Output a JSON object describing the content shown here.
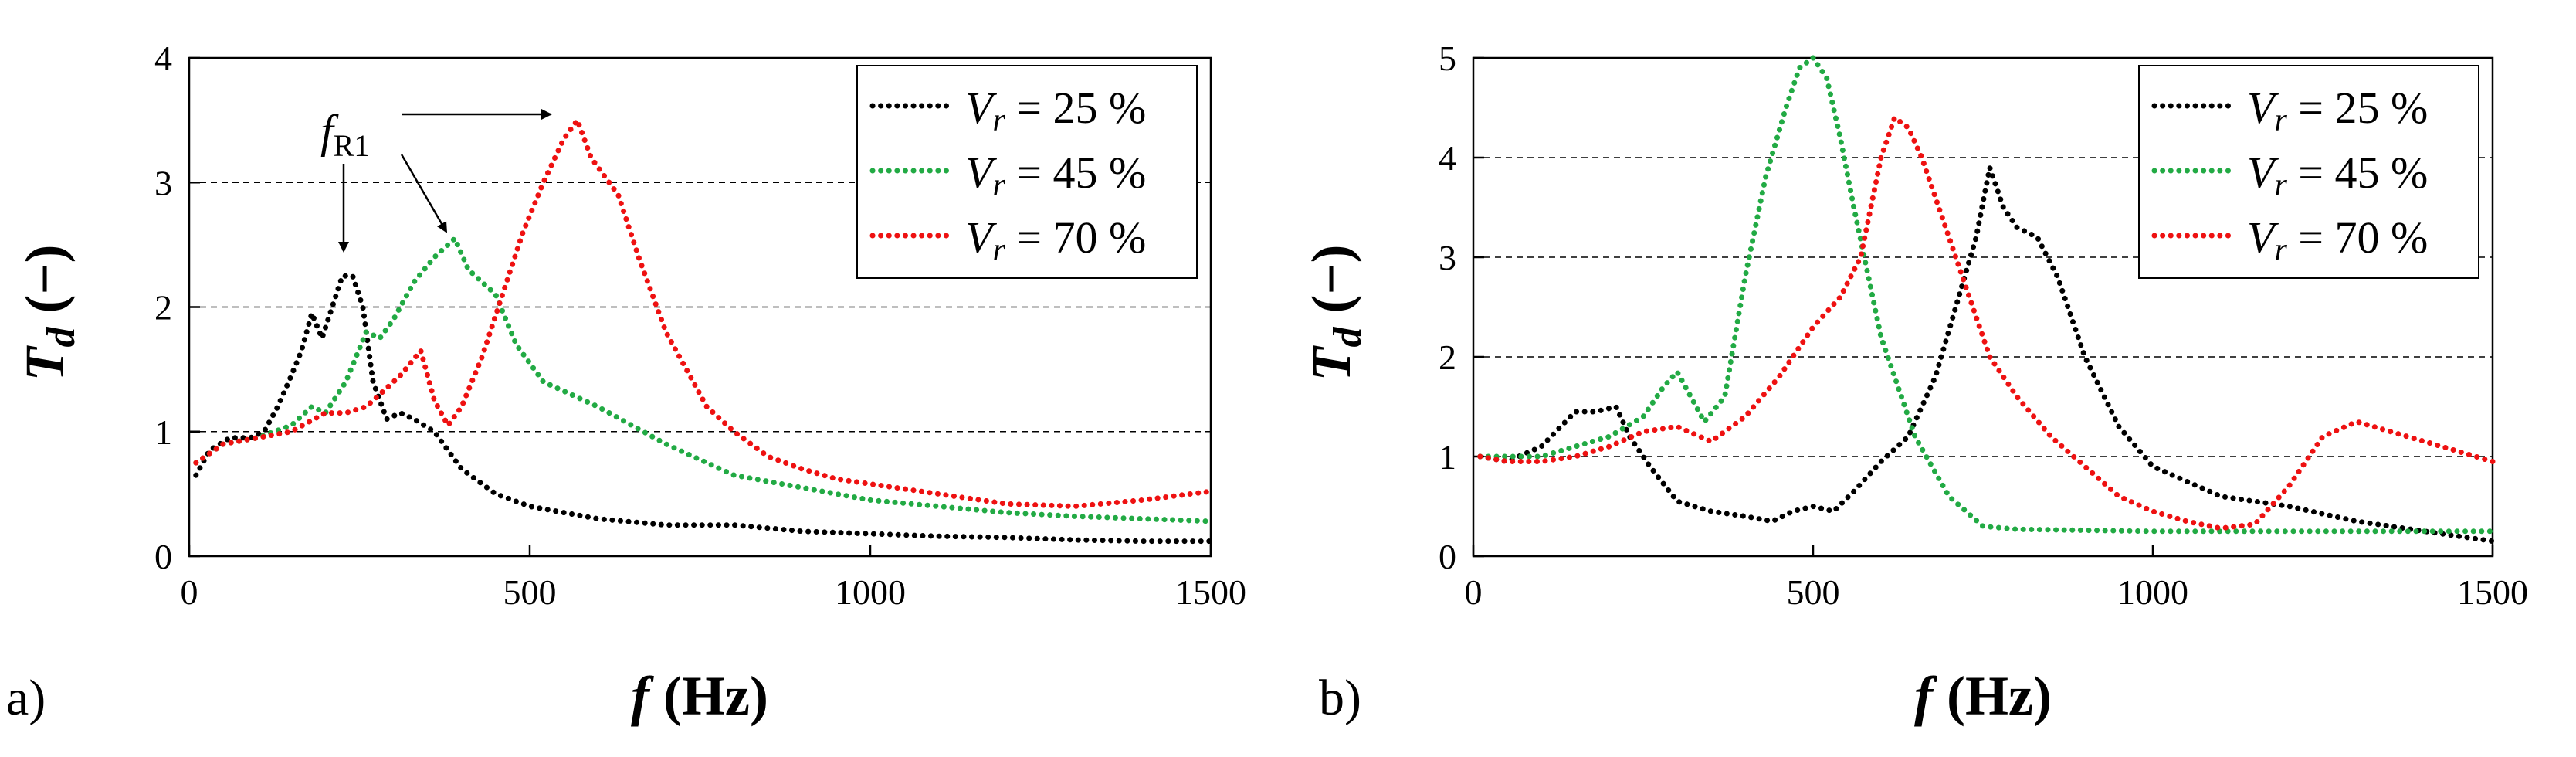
{
  "chart_data": [
    {
      "type": "line",
      "panel_label": "a)",
      "xlabel": "f (Hz)",
      "xlabel_var": "f",
      "xlabel_unit": "(Hz)",
      "ylabel_var": "T",
      "ylabel_sub": "d",
      "ylabel_unit": "(−)",
      "xlim": [
        0,
        1500
      ],
      "ylim": [
        0,
        4
      ],
      "xticks": [
        0,
        500,
        1000,
        1500
      ],
      "yticks": [
        0,
        1,
        2,
        3,
        4
      ],
      "grid": "horizontal dashed",
      "legend_position": "top-right",
      "annotation": {
        "text_var": "f",
        "text_sub": "R1"
      },
      "series": [
        {
          "name": "V_r = 25 %",
          "legend_var": "V",
          "legend_sub": "r",
          "legend_rest": " = 25 %",
          "color": "#000000",
          "x": [
            10,
            30,
            60,
            90,
            110,
            130,
            150,
            165,
            180,
            195,
            210,
            225,
            240,
            255,
            270,
            290,
            310,
            330,
            360,
            400,
            450,
            500,
            550,
            600,
            700,
            800,
            900,
            1000,
            1100,
            1200,
            1300,
            1400,
            1500
          ],
          "y": [
            0.65,
            0.85,
            0.95,
            0.95,
            1.0,
            1.2,
            1.45,
            1.65,
            1.95,
            1.75,
            2.0,
            2.25,
            2.25,
            2.0,
            1.4,
            1.1,
            1.15,
            1.1,
            1.0,
            0.7,
            0.5,
            0.4,
            0.35,
            0.3,
            0.25,
            0.25,
            0.2,
            0.18,
            0.16,
            0.15,
            0.13,
            0.12,
            0.12
          ]
        },
        {
          "name": "V_r = 45 %",
          "legend_var": "V",
          "legend_sub": "r",
          "legend_rest": " = 45 %",
          "color": "#22aa44",
          "x": [
            10,
            50,
            100,
            150,
            180,
            200,
            230,
            260,
            280,
            300,
            330,
            360,
            390,
            410,
            430,
            450,
            480,
            520,
            560,
            600,
            700,
            800,
            900,
            1000,
            1100,
            1200,
            1300,
            1400,
            1500
          ],
          "y": [
            0.75,
            0.9,
            0.95,
            1.05,
            1.2,
            1.15,
            1.4,
            1.8,
            1.75,
            1.9,
            2.2,
            2.4,
            2.55,
            2.3,
            2.2,
            2.1,
            1.7,
            1.4,
            1.3,
            1.2,
            0.9,
            0.65,
            0.55,
            0.45,
            0.4,
            0.35,
            0.32,
            0.3,
            0.28
          ]
        },
        {
          "name": "V_r = 70 %",
          "legend_var": "V",
          "legend_sub": "r",
          "legend_rest": " = 70 %",
          "color": "#ee1111",
          "x": [
            10,
            50,
            100,
            150,
            200,
            230,
            260,
            280,
            310,
            340,
            360,
            380,
            400,
            430,
            460,
            490,
            520,
            550,
            570,
            590,
            610,
            630,
            660,
            700,
            760,
            800,
            850,
            900,
            950,
            1000,
            1100,
            1200,
            1300,
            1400,
            1500
          ],
          "y": [
            0.75,
            0.9,
            0.95,
            1.0,
            1.15,
            1.15,
            1.2,
            1.3,
            1.45,
            1.65,
            1.25,
            1.05,
            1.2,
            1.6,
            2.1,
            2.6,
            3.0,
            3.35,
            3.5,
            3.2,
            3.05,
            2.9,
            2.4,
            1.8,
            1.2,
            1.0,
            0.8,
            0.7,
            0.62,
            0.58,
            0.5,
            0.42,
            0.4,
            0.45,
            0.52
          ]
        }
      ]
    },
    {
      "type": "line",
      "panel_label": "b)",
      "xlabel": "f (Hz)",
      "xlabel_var": "f",
      "xlabel_unit": "(Hz)",
      "ylabel_var": "T",
      "ylabel_sub": "d",
      "ylabel_unit": "(−)",
      "xlim": [
        0,
        1500
      ],
      "ylim": [
        0,
        5
      ],
      "xticks": [
        0,
        500,
        1000,
        1500
      ],
      "yticks": [
        0,
        1,
        2,
        3,
        4,
        5
      ],
      "grid": "horizontal dashed",
      "legend_position": "top-right",
      "series": [
        {
          "name": "V_r = 25 %",
          "legend_var": "V",
          "legend_sub": "r",
          "legend_rest": " = 25 %",
          "color": "#000000",
          "x": [
            10,
            50,
            100,
            150,
            180,
            210,
            230,
            260,
            300,
            350,
            400,
            440,
            470,
            500,
            530,
            560,
            600,
            640,
            680,
            710,
            740,
            760,
            780,
            800,
            830,
            860,
            900,
            950,
            1000,
            1100,
            1200,
            1300,
            1400,
            1500
          ],
          "y": [
            1.0,
            0.95,
            1.1,
            1.45,
            1.45,
            1.5,
            1.2,
            0.9,
            0.55,
            0.45,
            0.4,
            0.35,
            0.45,
            0.5,
            0.45,
            0.65,
            0.95,
            1.2,
            1.8,
            2.5,
            3.2,
            3.9,
            3.5,
            3.3,
            3.2,
            2.8,
            2.0,
            1.3,
            0.9,
            0.6,
            0.5,
            0.35,
            0.25,
            0.15
          ]
        },
        {
          "name": "V_r = 45 %",
          "legend_var": "V",
          "legend_sub": "r",
          "legend_rest": " = 45 %",
          "color": "#22aa44",
          "x": [
            10,
            50,
            100,
            150,
            200,
            250,
            280,
            300,
            320,
            340,
            370,
            400,
            430,
            460,
            480,
            500,
            520,
            540,
            560,
            600,
            650,
            700,
            750,
            800,
            900,
            1000,
            1100,
            1200,
            1300,
            1400,
            1500
          ],
          "y": [
            1.0,
            1.0,
            1.0,
            1.1,
            1.2,
            1.4,
            1.7,
            1.85,
            1.6,
            1.35,
            1.6,
            2.8,
            3.8,
            4.5,
            4.9,
            5.0,
            4.8,
            4.2,
            3.5,
            2.2,
            1.2,
            0.6,
            0.3,
            0.27,
            0.26,
            0.25,
            0.25,
            0.25,
            0.25,
            0.25,
            0.25
          ]
        },
        {
          "name": "V_r = 70 %",
          "legend_var": "V",
          "legend_sub": "r",
          "legend_rest": " = 70 %",
          "color": "#ee1111",
          "x": [
            10,
            50,
            100,
            150,
            200,
            250,
            300,
            350,
            400,
            450,
            500,
            540,
            570,
            600,
            620,
            640,
            660,
            680,
            720,
            760,
            800,
            850,
            900,
            950,
            1000,
            1050,
            1100,
            1150,
            1200,
            1250,
            1300,
            1350,
            1400,
            1450,
            1500
          ],
          "y": [
            1.0,
            0.95,
            0.95,
            1.0,
            1.1,
            1.25,
            1.3,
            1.15,
            1.4,
            1.8,
            2.3,
            2.6,
            3.0,
            4.0,
            4.4,
            4.3,
            4.0,
            3.6,
            2.8,
            2.0,
            1.6,
            1.2,
            0.9,
            0.6,
            0.45,
            0.35,
            0.28,
            0.32,
            0.7,
            1.2,
            1.35,
            1.25,
            1.15,
            1.05,
            0.95
          ]
        }
      ]
    }
  ]
}
